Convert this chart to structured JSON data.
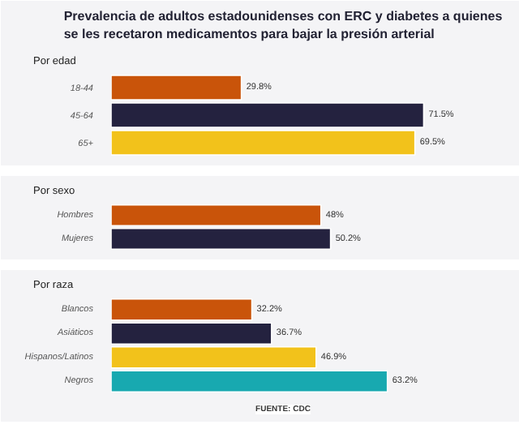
{
  "chart_data": [
    {
      "type": "bar",
      "orientation": "horizontal",
      "title": "Prevalencia de adultos estadounidenses con ERC y diabetes a quienes se les recetaron medicamentos para bajar la presión arterial",
      "subtitle": "Por edad",
      "categories": [
        "18-44",
        "45-64",
        "65+"
      ],
      "values": [
        29.8,
        71.5,
        69.5
      ],
      "value_labels": [
        "29.8%",
        "71.5%",
        "69.5%"
      ],
      "colors": [
        "#c9540a",
        "#24223f",
        "#f2c21b"
      ]
    },
    {
      "type": "bar",
      "orientation": "horizontal",
      "subtitle": "Por sexo",
      "categories": [
        "Hombres",
        "Mujeres"
      ],
      "values": [
        48,
        50.2
      ],
      "value_labels": [
        "48%",
        "50.2%"
      ],
      "colors": [
        "#c9540a",
        "#24223f"
      ]
    },
    {
      "type": "bar",
      "orientation": "horizontal",
      "subtitle": "Por raza",
      "categories": [
        "Blancos",
        "Asiáticos",
        "Hispanos/Latinos",
        "Negros"
      ],
      "values": [
        32.2,
        36.7,
        46.9,
        63.2
      ],
      "value_labels": [
        "32.2%",
        "36.7%",
        "46.9%",
        "63.2%"
      ],
      "colors": [
        "#c9540a",
        "#24223f",
        "#f2c21b",
        "#18a9b0"
      ],
      "annotations": [
        "FUENTE: CDC"
      ]
    }
  ]
}
